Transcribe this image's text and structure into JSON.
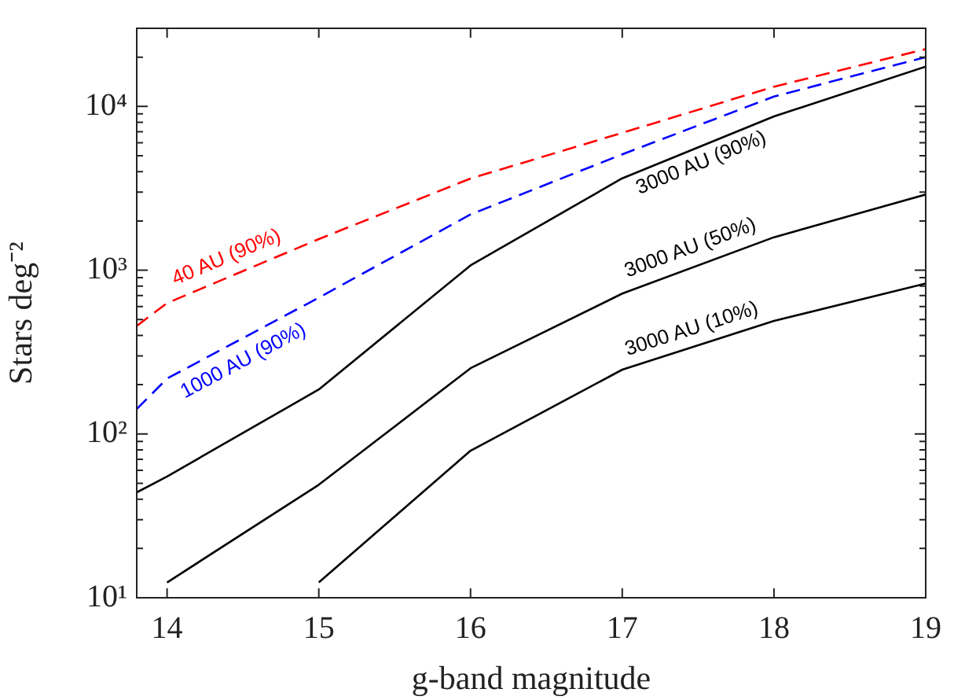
{
  "chart_data": {
    "type": "line",
    "xlabel": "g-band magnitude",
    "ylabel": "Stars deg⁻²",
    "log": "y",
    "grid": false,
    "legend": false,
    "marker": "none",
    "xlim": [
      13.8,
      19
    ],
    "xticks": [
      14,
      15,
      16,
      17,
      18,
      19
    ],
    "ylim": [
      10,
      30000
    ],
    "yticks": [
      {
        "value": 10,
        "label": "10¹"
      },
      {
        "value": 20,
        "label": null
      },
      {
        "value": 30,
        "label": null
      },
      {
        "value": 40,
        "label": null
      },
      {
        "value": 50,
        "label": null
      },
      {
        "value": 60,
        "label": null
      },
      {
        "value": 70,
        "label": null
      },
      {
        "value": 80,
        "label": null
      },
      {
        "value": 90,
        "label": null
      },
      {
        "value": 100,
        "label": "10²"
      },
      {
        "value": 200,
        "label": null
      },
      {
        "value": 300,
        "label": null
      },
      {
        "value": 400,
        "label": null
      },
      {
        "value": 500,
        "label": null
      },
      {
        "value": 600,
        "label": null
      },
      {
        "value": 700,
        "label": null
      },
      {
        "value": 800,
        "label": null
      },
      {
        "value": 900,
        "label": null
      },
      {
        "value": 1000,
        "label": "10³"
      },
      {
        "value": 2000,
        "label": null
      },
      {
        "value": 3000,
        "label": null
      },
      {
        "value": 4000,
        "label": null
      },
      {
        "value": 5000,
        "label": null
      },
      {
        "value": 6000,
        "label": null
      },
      {
        "value": 7000,
        "label": null
      },
      {
        "value": 8000,
        "label": null
      },
      {
        "value": 9000,
        "label": null
      },
      {
        "value": 10000,
        "label": "10⁴"
      },
      {
        "value": 20000,
        "label": null
      },
      {
        "value": 30000,
        "label": null
      }
    ],
    "series": [
      {
        "name": "40 AU (90%)",
        "color": "#ff0000",
        "line_style": "dashed",
        "x": [
          13.8,
          14,
          15,
          16,
          17,
          18,
          19
        ],
        "values": [
          457,
          630,
          1550,
          3630,
          6900,
          13200,
          22400
        ]
      },
      {
        "name": "1000 AU (90%)",
        "color": "#0000ff",
        "line_style": "dashed",
        "x": [
          13.8,
          14,
          15,
          16,
          17,
          18,
          19
        ],
        "values": [
          142,
          218,
          680,
          2190,
          5100,
          11500,
          20000
        ]
      },
      {
        "name": "3000 AU (90%)",
        "color": "#000000",
        "line_style": "solid",
        "x": [
          13.8,
          14,
          15,
          16,
          17,
          18,
          19
        ],
        "values": [
          44,
          55,
          187,
          1070,
          3640,
          8700,
          17500
        ]
      },
      {
        "name": "3000 AU (50%)",
        "color": "#000000",
        "line_style": "solid",
        "x": [
          14,
          15,
          16,
          17,
          18,
          19
        ],
        "values": [
          12.4,
          49,
          252,
          720,
          1590,
          2900
        ]
      },
      {
        "name": "3000 AU (10%)",
        "color": "#000000",
        "line_style": "solid",
        "x": [
          15,
          16,
          17,
          18,
          19
        ],
        "values": [
          12.4,
          79,
          247,
          490,
          830
        ]
      }
    ]
  }
}
